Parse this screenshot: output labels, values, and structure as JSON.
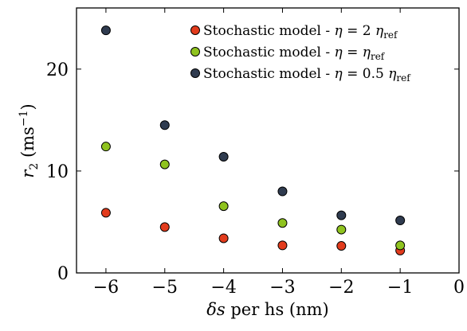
{
  "chart_data": {
    "type": "scatter",
    "xlabel": {
      "sym": "δs",
      "rest": " per hs (nm)"
    },
    "ylabel": {
      "sym": "r",
      "sub": "2",
      "unit": " (ms",
      "sup": "−1",
      "close": ")"
    },
    "xlim": [
      -6.5,
      0
    ],
    "ylim": [
      0,
      26
    ],
    "xticks": [
      -6,
      -5,
      -4,
      -3,
      -2,
      -1,
      0
    ],
    "xtick_labels": [
      "−6",
      "−5",
      "−4",
      "−3",
      "−2",
      "−1",
      "0"
    ],
    "yticks": [
      0,
      10,
      20
    ],
    "ytick_labels": [
      "0",
      "10",
      "20"
    ],
    "grid": false,
    "legend_position": "top-right",
    "series": [
      {
        "name": "Stochastic model - η = 2 η_ref",
        "legend": {
          "prefix": "Stochastic model - ",
          "sym": "η",
          "mid": " = 2 ",
          "sym2": "η",
          "sub": "ref"
        },
        "color": "#e23b1c",
        "x": [
          -6,
          -5,
          -4,
          -3,
          -2,
          -1
        ],
        "y": [
          5.9,
          4.5,
          3.4,
          2.7,
          2.65,
          2.2
        ]
      },
      {
        "name": "Stochastic model - η = η_ref",
        "legend": {
          "prefix": "Stochastic model - ",
          "sym": "η",
          "mid": " = ",
          "sym2": "η",
          "sub": "ref"
        },
        "color": "#8fc31f",
        "x": [
          -6,
          -5,
          -4,
          -3,
          -2,
          -1
        ],
        "y": [
          12.4,
          10.65,
          6.55,
          4.9,
          4.25,
          2.7
        ]
      },
      {
        "name": "Stochastic model - η = 0.5 η_ref",
        "legend": {
          "prefix": "Stochastic model - ",
          "sym": "η",
          "mid": " = 0.5 ",
          "sym2": "η",
          "sub": "ref"
        },
        "color": "#2f3b4f",
        "x": [
          -6,
          -5,
          -4,
          -3,
          -2,
          -1
        ],
        "y": [
          23.8,
          14.5,
          11.4,
          8.0,
          5.65,
          5.15
        ]
      }
    ]
  }
}
